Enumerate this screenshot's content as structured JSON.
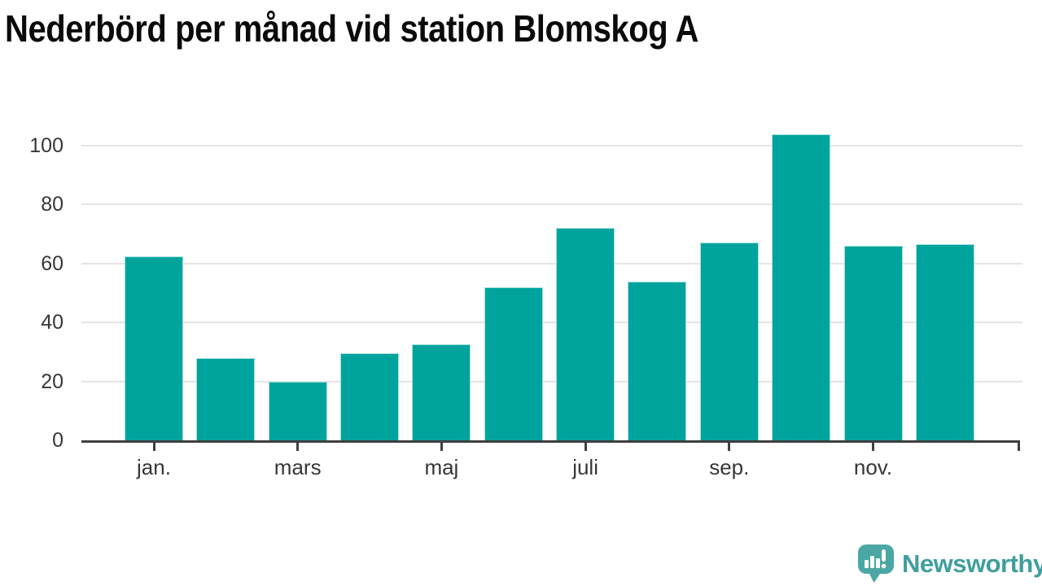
{
  "title": "Nederbörd per månad vid station Blomskog A",
  "chart_data": {
    "type": "bar",
    "title": "Nederbörd per månad vid station Blomskog A",
    "values": [
      62.5,
      28,
      20,
      29.5,
      32.5,
      52,
      72,
      54,
      67,
      104,
      66,
      66.5
    ],
    "x_tick_labels": [
      "jan.",
      "mars",
      "maj",
      "juli",
      "sep.",
      "nov."
    ],
    "x_tick_bar_indices": [
      0,
      2,
      4,
      6,
      8,
      10
    ],
    "y_ticks": [
      0,
      20,
      40,
      60,
      80,
      100
    ],
    "ylim": [
      0,
      110
    ],
    "xlabel": "",
    "ylabel": "",
    "grid": "horizontal gridlines only",
    "legend": "none",
    "bar_color": "#00a49c"
  },
  "colors": {
    "bar": "#00a49c",
    "gridline": "#e4e4e4",
    "axis": "#3f3f3f",
    "tick_label": "#373737",
    "title": "#0a0a0a",
    "background": "#ffffff",
    "logo_badge": "#4ba7a4",
    "logo_text": "#3f9e9e"
  },
  "logo": {
    "text": "Newsworthy",
    "icon": "speech-bubble-bar-chart-exclamation"
  }
}
